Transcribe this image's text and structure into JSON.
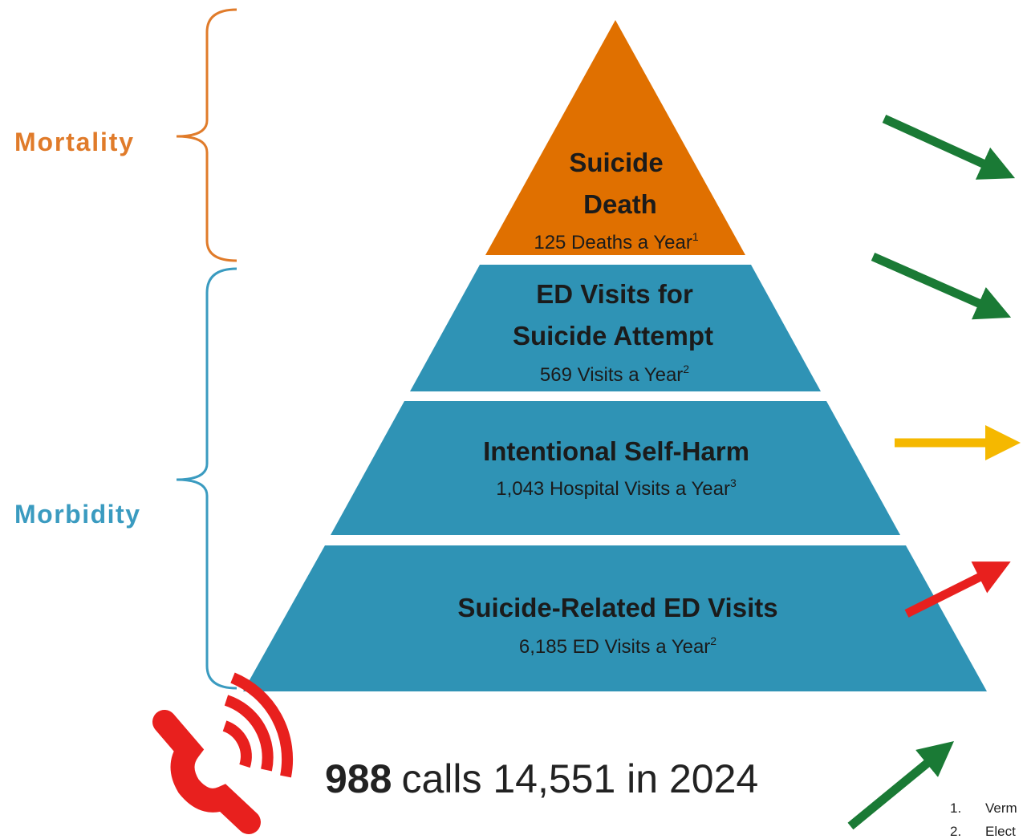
{
  "brackets": [
    {
      "label": "Mortality"
    },
    {
      "label": "Morbidity"
    }
  ],
  "tiers": [
    {
      "title": [
        "Suicide",
        "Death"
      ],
      "detail": "125 Deaths a Year",
      "note": "1"
    },
    {
      "title": [
        "ED Visits for",
        "Suicide Attempt"
      ],
      "detail": "569 Visits a Year",
      "note": "2"
    },
    {
      "title": [
        "Intentional Self-Harm"
      ],
      "detail": "1,043 Hospital Visits a Year",
      "note": "3"
    },
    {
      "title": [
        "Suicide-Related ED Visits"
      ],
      "detail": "6,185 ED Visits a Year",
      "note": "2"
    }
  ],
  "callout": {
    "number": "988",
    "text": "calls 14,551 in 2024"
  },
  "footnotes": [
    {
      "number": "1.",
      "text": "Verm"
    },
    {
      "number": "2.",
      "text": "Elect"
    }
  ]
}
